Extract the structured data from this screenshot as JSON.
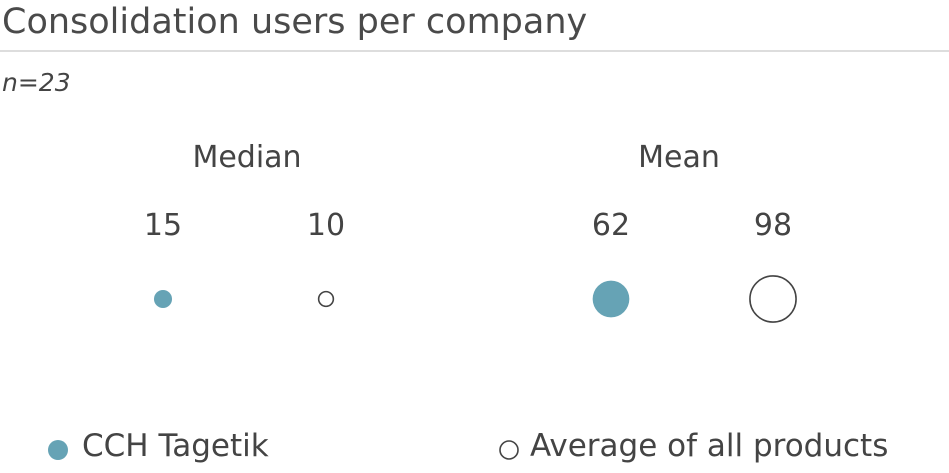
{
  "title": "Consolidation users per company",
  "subtitle": "n=23",
  "chart_data": {
    "type": "bubble",
    "title": "Consolidation users per company",
    "groups": [
      {
        "label": "Median",
        "values": [
          15,
          10
        ]
      },
      {
        "label": "Mean",
        "values": [
          62,
          98
        ]
      }
    ],
    "series": [
      {
        "name": "CCH Tagetik",
        "style": "filled",
        "color": "#66a3b5"
      },
      {
        "name": "Average of all products",
        "style": "outline",
        "color": "#444444"
      }
    ],
    "value_labels": [
      "15",
      "10",
      "62",
      "98"
    ],
    "legend_position": "bottom",
    "size_encoding": "area proportional to value"
  }
}
